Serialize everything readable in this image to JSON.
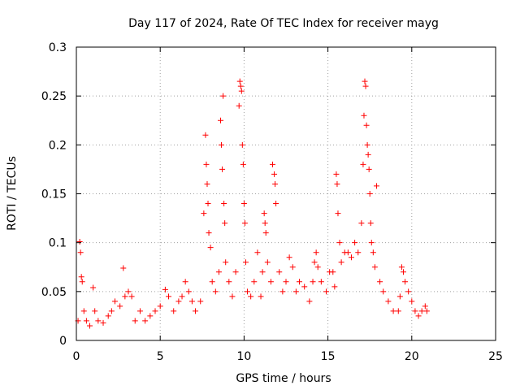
{
  "chart_data": {
    "type": "scatter",
    "title": "Day 117 of 2024, Rate Of TEC Index for receiver mayg",
    "xlabel": "GPS time / hours",
    "ylabel": "ROTI / TECUs",
    "xlim": [
      0,
      25
    ],
    "ylim": [
      0,
      0.3
    ],
    "x_ticks": [
      0,
      5,
      10,
      15,
      20,
      25
    ],
    "y_ticks": [
      0,
      0.05,
      0.1,
      0.15,
      0.2,
      0.25,
      0.3
    ],
    "x_tick_labels": [
      "0",
      "5",
      "10",
      "15",
      "20",
      "25"
    ],
    "y_tick_labels": [
      "0",
      "0.05",
      "0.1",
      "0.15",
      "0.2",
      "0.25",
      "0.3"
    ],
    "grid": true,
    "grid_style": "dotted",
    "marker": "+",
    "color": "#ff0000",
    "series": [
      {
        "x": [
          0.1,
          0.2,
          0.25,
          0.3,
          0.35,
          0.45,
          0.6,
          0.8,
          1.0,
          1.1,
          1.3,
          1.6,
          1.9,
          2.1,
          2.3,
          2.6,
          2.8,
          2.9,
          3.1,
          3.3,
          3.5,
          3.8,
          4.1,
          4.4,
          4.7,
          5.0,
          5.3,
          5.5,
          5.8,
          6.1,
          6.3,
          6.5,
          6.7,
          6.9,
          7.1,
          7.4,
          7.6,
          7.7,
          7.75,
          7.8,
          7.85,
          7.9,
          8.0,
          8.1,
          8.3,
          8.5,
          8.6,
          8.65,
          8.7,
          8.75,
          8.8,
          8.85,
          8.9,
          9.1,
          9.3,
          9.5,
          9.7,
          9.75,
          9.8,
          9.85,
          9.9,
          9.95,
          10.0,
          10.05,
          10.1,
          10.2,
          10.4,
          10.6,
          10.8,
          11.0,
          11.1,
          11.2,
          11.25,
          11.3,
          11.4,
          11.6,
          11.7,
          11.8,
          11.85,
          11.9,
          12.1,
          12.3,
          12.5,
          12.7,
          12.9,
          13.1,
          13.3,
          13.6,
          13.9,
          14.1,
          14.2,
          14.3,
          14.4,
          14.6,
          14.9,
          15.1,
          15.3,
          15.4,
          15.5,
          15.55,
          15.6,
          15.7,
          15.8,
          16.0,
          16.2,
          16.4,
          16.6,
          16.8,
          17.0,
          17.1,
          17.15,
          17.2,
          17.25,
          17.3,
          17.35,
          17.4,
          17.45,
          17.5,
          17.55,
          17.6,
          17.7,
          17.8,
          17.9,
          18.1,
          18.3,
          18.6,
          18.9,
          19.2,
          19.3,
          19.4,
          19.5,
          19.6,
          19.8,
          20.0,
          20.2,
          20.4,
          20.6,
          20.8,
          20.9
        ],
        "y": [
          0.02,
          0.101,
          0.09,
          0.065,
          0.06,
          0.03,
          0.02,
          0.015,
          0.054,
          0.03,
          0.02,
          0.018,
          0.025,
          0.03,
          0.04,
          0.035,
          0.074,
          0.045,
          0.05,
          0.045,
          0.02,
          0.03,
          0.02,
          0.025,
          0.03,
          0.035,
          0.052,
          0.045,
          0.03,
          0.04,
          0.045,
          0.06,
          0.05,
          0.04,
          0.03,
          0.04,
          0.13,
          0.21,
          0.18,
          0.16,
          0.14,
          0.11,
          0.095,
          0.06,
          0.05,
          0.07,
          0.225,
          0.2,
          0.175,
          0.25,
          0.14,
          0.12,
          0.08,
          0.06,
          0.045,
          0.07,
          0.24,
          0.265,
          0.26,
          0.255,
          0.2,
          0.18,
          0.14,
          0.12,
          0.08,
          0.05,
          0.045,
          0.06,
          0.09,
          0.045,
          0.07,
          0.13,
          0.12,
          0.11,
          0.08,
          0.06,
          0.18,
          0.17,
          0.16,
          0.14,
          0.07,
          0.05,
          0.06,
          0.085,
          0.075,
          0.05,
          0.06,
          0.055,
          0.04,
          0.06,
          0.08,
          0.09,
          0.075,
          0.06,
          0.05,
          0.07,
          0.07,
          0.055,
          0.17,
          0.16,
          0.13,
          0.1,
          0.08,
          0.09,
          0.09,
          0.085,
          0.1,
          0.09,
          0.12,
          0.18,
          0.23,
          0.265,
          0.26,
          0.22,
          0.2,
          0.19,
          0.175,
          0.15,
          0.12,
          0.1,
          0.09,
          0.075,
          0.158,
          0.06,
          0.05,
          0.04,
          0.03,
          0.03,
          0.045,
          0.075,
          0.07,
          0.06,
          0.05,
          0.04,
          0.03,
          0.025,
          0.03,
          0.035,
          0.03
        ]
      }
    ]
  }
}
